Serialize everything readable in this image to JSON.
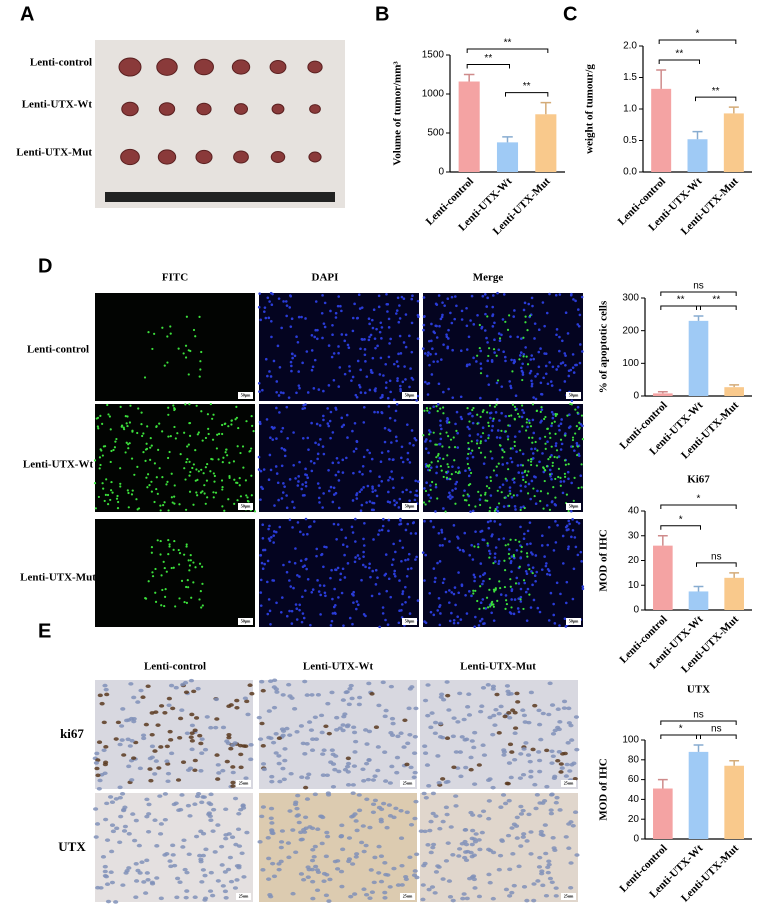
{
  "panels": {
    "A": {
      "letter": "A",
      "rows": [
        "Lenti-control",
        "Lenti-UTX-Wt",
        "Lenti-UTX-Mut"
      ]
    },
    "B": {
      "letter": "B"
    },
    "C": {
      "letter": "C"
    },
    "D": {
      "letter": "D",
      "columns": [
        "FITC",
        "DAPI",
        "Merge"
      ],
      "rows": [
        "Lenti-control",
        "Lenti-UTX-Wt",
        "Lenti-UTX-Mut"
      ],
      "scale_bar": "50μm"
    },
    "E": {
      "letter": "E",
      "columns": [
        "Lenti-control",
        "Lenti-UTX-Wt",
        "Lenti-UTX-Mut"
      ],
      "rows": [
        "ki67",
        "UTX"
      ],
      "scale_bar": "25um"
    }
  },
  "chart_data": [
    {
      "type": "bar",
      "ylabel": "Volume of tumor/mm³",
      "categories": [
        "Lenti-control",
        "Lenti-UTX-Wt",
        "Lenti-UTX-Mut"
      ],
      "values": [
        1160,
        380,
        740
      ],
      "errors": [
        90,
        70,
        150
      ],
      "colors": [
        "#f4a3a3",
        "#9fcaf5",
        "#f9c98c"
      ],
      "ylim": [
        0,
        1500
      ],
      "yticks": [
        0,
        500,
        1000,
        1500
      ],
      "significance": [
        {
          "label": "**",
          "from": 0,
          "to": 1
        },
        {
          "label": "**",
          "from": 1,
          "to": 2
        },
        {
          "label": "**",
          "from": 0,
          "to": 2
        }
      ]
    },
    {
      "type": "bar",
      "ylabel": "weight of tumour/g",
      "categories": [
        "Lenti-control",
        "Lenti-UTX-Wt",
        "Lenti-UTX-Mut"
      ],
      "values": [
        1.32,
        0.52,
        0.93
      ],
      "errors": [
        0.3,
        0.12,
        0.1
      ],
      "colors": [
        "#f4a3a3",
        "#9fcaf5",
        "#f9c98c"
      ],
      "ylim": [
        0,
        2
      ],
      "yticks": [
        {
          "value": 0,
          "label": "0.0"
        },
        {
          "value": 0.5,
          "label": "0.5"
        },
        {
          "value": 1,
          "label": "1.0"
        },
        {
          "value": 1.5,
          "label": "1.5"
        },
        {
          "value": 2,
          "label": "2.0"
        }
      ],
      "significance": [
        {
          "label": "**",
          "from": 0,
          "to": 1
        },
        {
          "label": "**",
          "from": 1,
          "to": 2
        },
        {
          "label": "*",
          "from": 0,
          "to": 2
        }
      ]
    },
    {
      "type": "bar",
      "ylabel": "% of apoptotic cells",
      "categories": [
        "Lenti-control",
        "Lenti-UTX-Wt",
        "Lenti-UTX-Mut"
      ],
      "values": [
        8,
        230,
        27
      ],
      "errors": [
        5,
        15,
        7
      ],
      "colors": [
        "#f4a3a3",
        "#9fcaf5",
        "#f9c98c"
      ],
      "ylim": [
        0,
        300
      ],
      "yticks": [
        0,
        100,
        200,
        300
      ],
      "significance": [
        {
          "label": "**",
          "from": 0,
          "to": 1
        },
        {
          "label": "**",
          "from": 1,
          "to": 2
        },
        {
          "label": "ns",
          "from": 0,
          "to": 2
        }
      ]
    },
    {
      "type": "bar",
      "title": "Ki67",
      "ylabel": "MOD of IHC",
      "categories": [
        "Lenti-control",
        "Lenti-UTX-Wt",
        "Lenti-UTX-Mut"
      ],
      "values": [
        26,
        7.5,
        13
      ],
      "errors": [
        4,
        2,
        2
      ],
      "colors": [
        "#f4a3a3",
        "#9fcaf5",
        "#f9c98c"
      ],
      "ylim": [
        0,
        40
      ],
      "yticks": [
        0,
        10,
        20,
        30,
        40
      ],
      "significance": [
        {
          "label": "*",
          "from": 0,
          "to": 1
        },
        {
          "label": "ns",
          "from": 1,
          "to": 2
        },
        {
          "label": "*",
          "from": 0,
          "to": 2
        }
      ]
    },
    {
      "type": "bar",
      "title": "UTX",
      "ylabel": "MOD of IHC",
      "categories": [
        "Lenti-control",
        "Lenti-UTX-Wt",
        "Lenti-UTX-Mut"
      ],
      "values": [
        51,
        88,
        74
      ],
      "errors": [
        9,
        7,
        5
      ],
      "colors": [
        "#f4a3a3",
        "#9fcaf5",
        "#f9c98c"
      ],
      "ylim": [
        0,
        100
      ],
      "yticks": [
        0,
        20,
        40,
        60,
        80,
        100
      ],
      "significance": [
        {
          "label": "*",
          "from": 0,
          "to": 1
        },
        {
          "label": "ns",
          "from": 1,
          "to": 2
        },
        {
          "label": "ns",
          "from": 0,
          "to": 2
        }
      ]
    }
  ]
}
